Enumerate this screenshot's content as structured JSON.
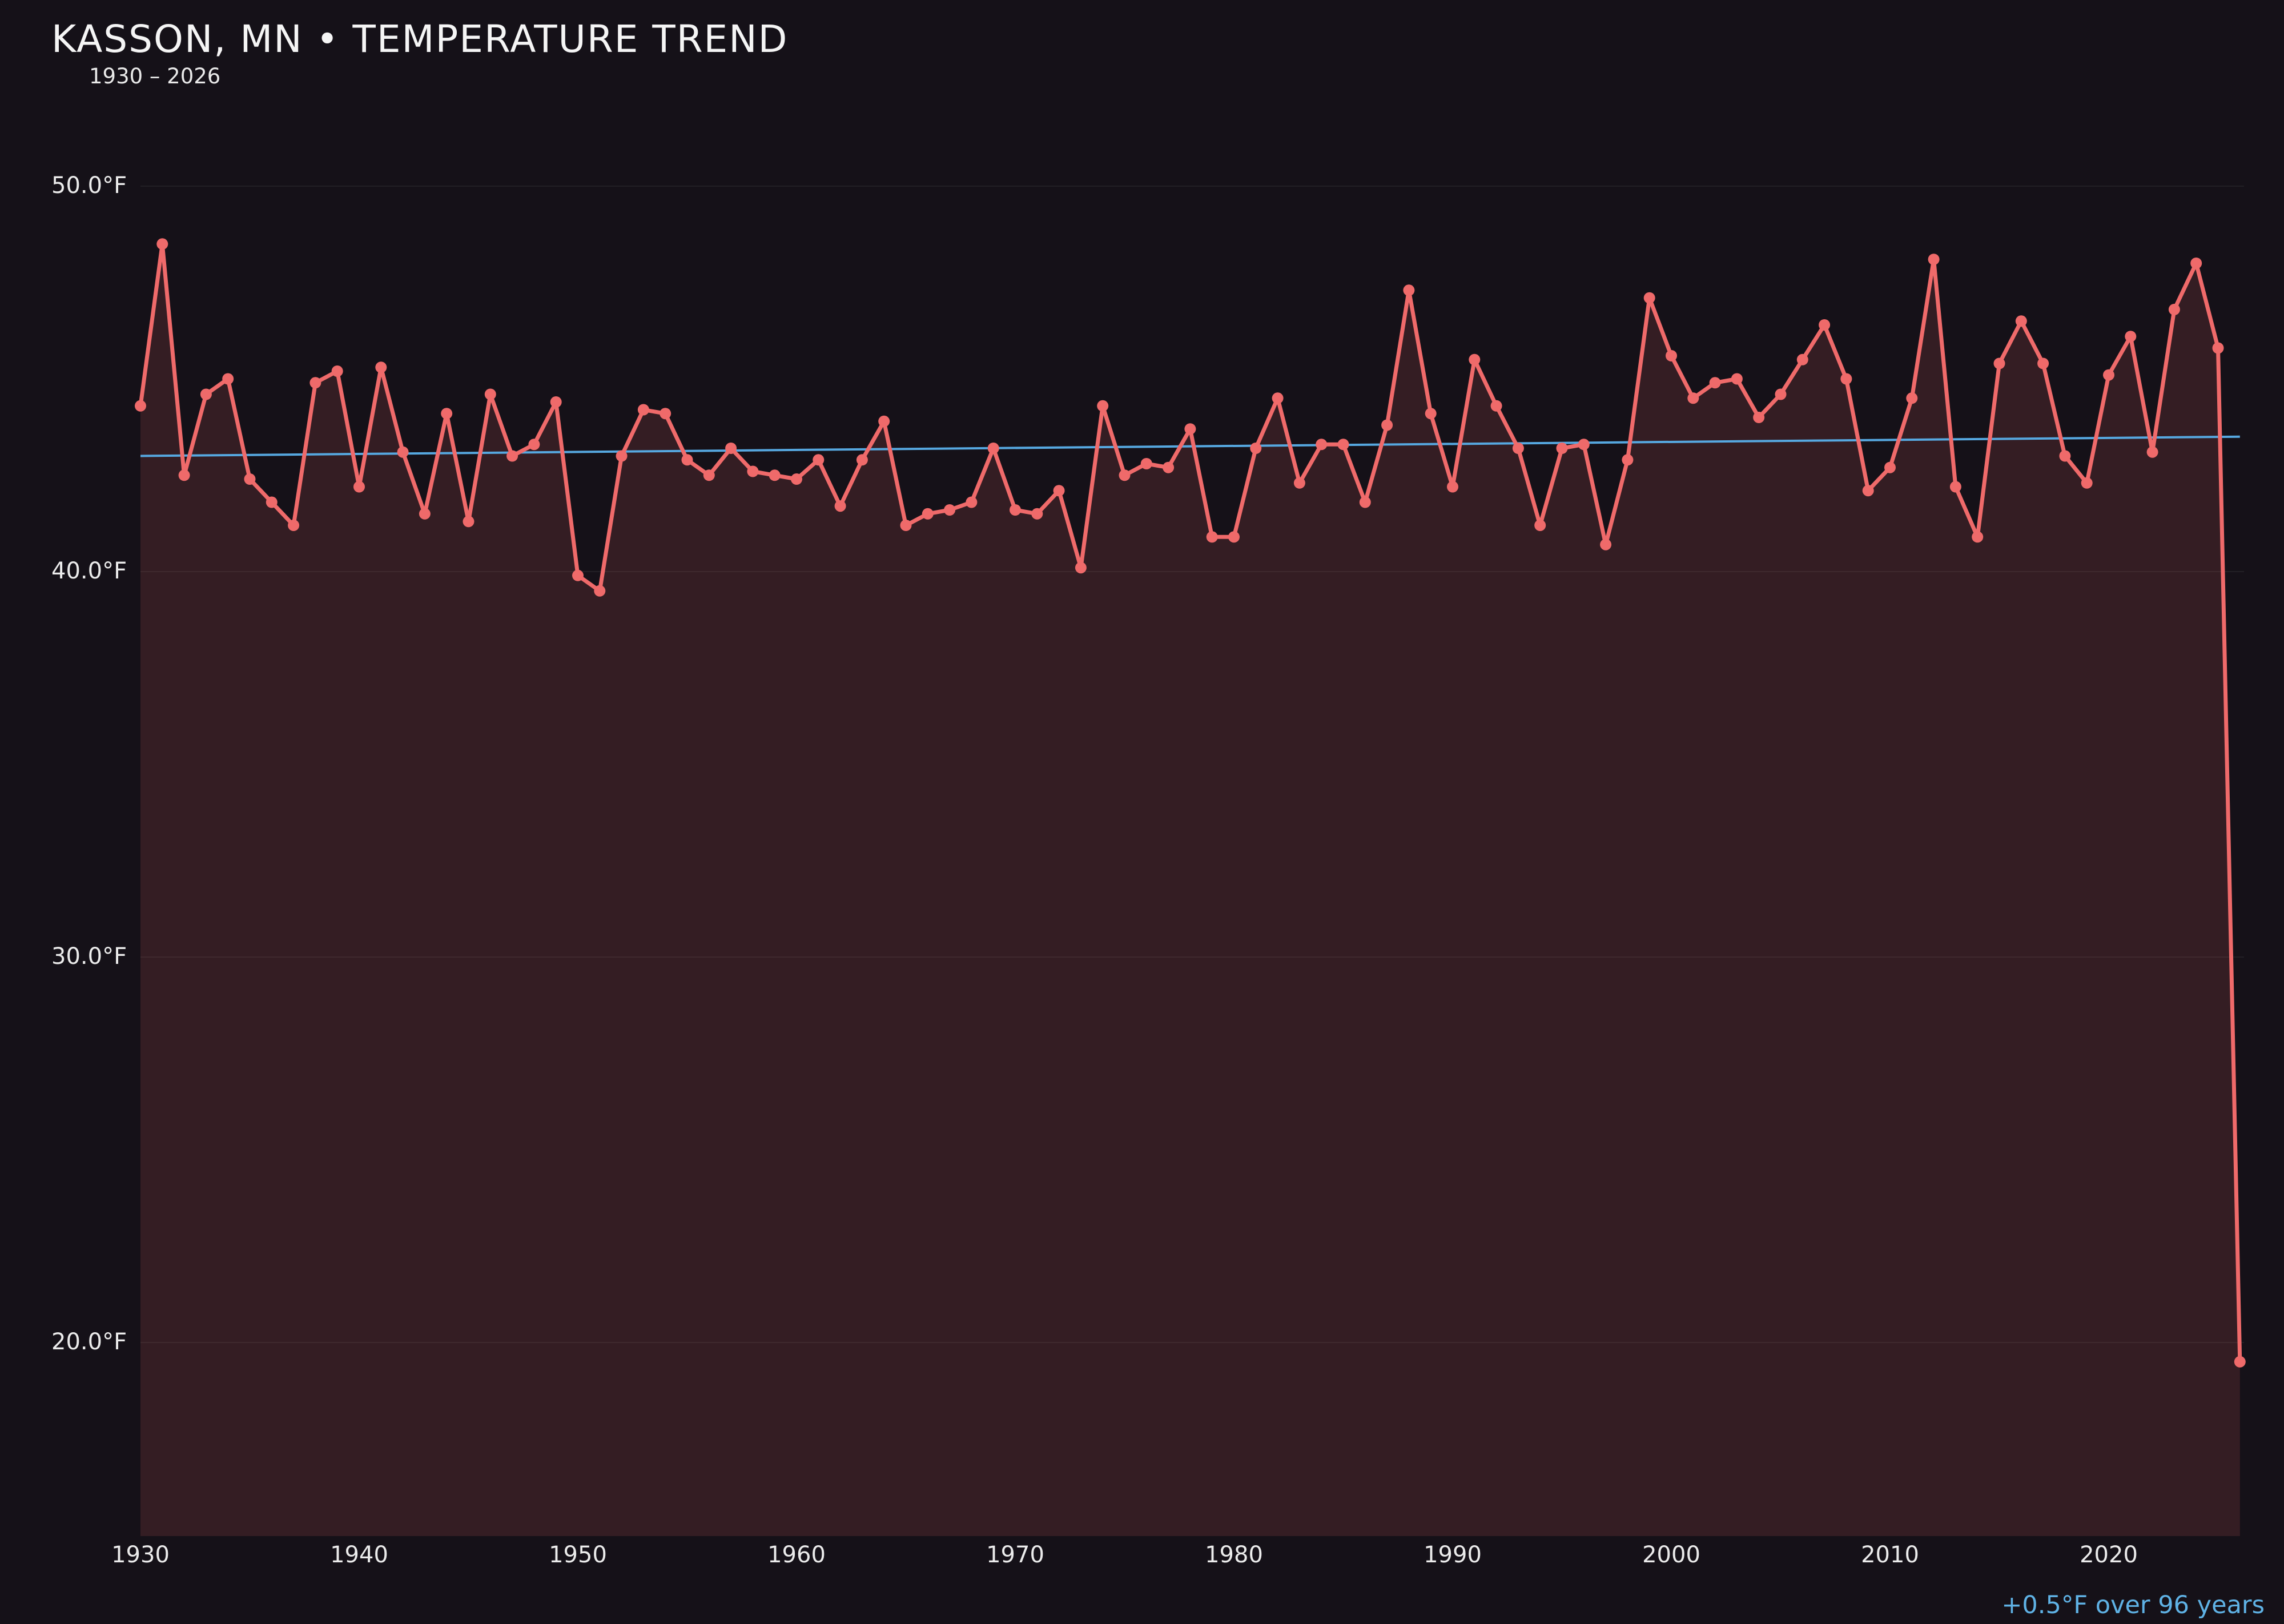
{
  "header": {
    "title": "KASSON, MN • TEMPERATURE TREND",
    "subtitle": "1930 – 2026"
  },
  "chart_data": {
    "type": "line",
    "title": "KASSON, MN • TEMPERATURE TREND",
    "subtitle": "1930 – 2026",
    "unit": "°F",
    "xlabel": "",
    "ylabel": "",
    "grid": "horizontal",
    "legend": "none",
    "ylim": [
      15,
      52.6
    ],
    "x_start": 1930,
    "x_end": 2026,
    "y_ticks": [
      "50.0°F",
      "40.0°F",
      "30.0°F",
      "20.0°F"
    ],
    "y_tick_values": [
      50,
      40,
      30,
      20
    ],
    "x_ticks": [
      "1930",
      "1940",
      "1950",
      "1960",
      "1970",
      "1980",
      "1990",
      "2000",
      "2010",
      "2020"
    ],
    "x_tick_values": [
      1930,
      1940,
      1950,
      1960,
      1970,
      1980,
      1990,
      2000,
      2010,
      2020
    ],
    "years": [
      1930,
      1931,
      1932,
      1933,
      1934,
      1935,
      1936,
      1937,
      1938,
      1939,
      1940,
      1941,
      1942,
      1943,
      1944,
      1945,
      1946,
      1947,
      1948,
      1949,
      1950,
      1951,
      1952,
      1953,
      1954,
      1955,
      1956,
      1957,
      1958,
      1959,
      1960,
      1961,
      1962,
      1963,
      1964,
      1965,
      1966,
      1967,
      1968,
      1969,
      1970,
      1971,
      1972,
      1973,
      1974,
      1975,
      1976,
      1977,
      1978,
      1979,
      1980,
      1981,
      1982,
      1983,
      1984,
      1985,
      1986,
      1987,
      1988,
      1989,
      1990,
      1991,
      1992,
      1993,
      1994,
      1995,
      1996,
      1997,
      1998,
      1999,
      2000,
      2001,
      2002,
      2003,
      2004,
      2005,
      2006,
      2007,
      2008,
      2009,
      2010,
      2011,
      2012,
      2013,
      2014,
      2015,
      2016,
      2017,
      2018,
      2019,
      2020,
      2021,
      2022,
      2023,
      2024,
      2025,
      2026
    ],
    "values": [
      44.3,
      48.5,
      42.5,
      44.6,
      45.0,
      42.4,
      41.8,
      41.2,
      44.9,
      45.2,
      42.2,
      45.3,
      43.1,
      41.5,
      44.1,
      41.3,
      44.6,
      43.0,
      43.3,
      44.4,
      39.9,
      39.5,
      43.0,
      44.2,
      44.1,
      42.9,
      42.5,
      43.2,
      42.6,
      42.5,
      42.4,
      42.9,
      41.7,
      42.9,
      43.9,
      41.2,
      41.5,
      41.6,
      41.8,
      43.2,
      41.6,
      41.5,
      42.1,
      40.1,
      44.3,
      42.5,
      42.8,
      42.7,
      43.7,
      40.9,
      40.9,
      43.2,
      44.5,
      42.3,
      43.3,
      43.3,
      41.8,
      43.8,
      47.3,
      44.1,
      42.2,
      45.5,
      44.3,
      43.2,
      41.2,
      43.2,
      43.3,
      40.7,
      42.9,
      47.1,
      45.6,
      44.5,
      44.9,
      45.0,
      44.0,
      44.6,
      45.5,
      46.4,
      45.0,
      42.1,
      42.7,
      44.5,
      48.1,
      42.2,
      40.9,
      45.4,
      46.5,
      45.4,
      43.0,
      42.3,
      45.1,
      46.1,
      43.1,
      46.8,
      48.0,
      45.8,
      19.5
    ],
    "trend": {
      "start_value": 43.0,
      "end_value": 43.5,
      "label": "+0.5°F over 96 years"
    },
    "colors": {
      "line": "#ef6a6a",
      "point": "#ef6a6a",
      "fill": "rgba(239,106,106,0.14)",
      "trend": "#56a8e0",
      "background": "#151118",
      "grid": "rgba(255,255,255,0.06)",
      "text": "#ebebeb",
      "annotation": "#5fb2e5"
    }
  }
}
